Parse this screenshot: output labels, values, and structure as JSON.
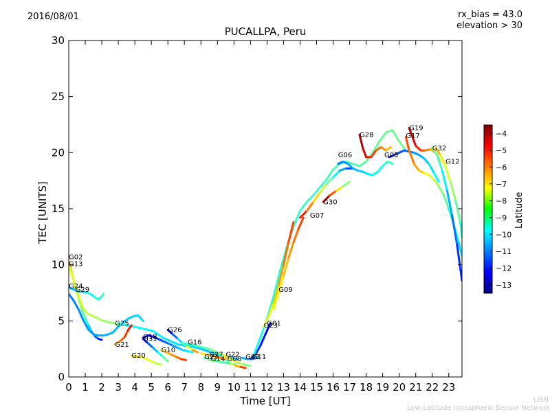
{
  "header": {
    "date": "2016/08/01",
    "title": "PUCALLPA, Peru",
    "rx_bias": "rx_bias = 43.0",
    "elevation": "elevation > 30"
  },
  "footer": {
    "line1": "LISN",
    "line2": "Low-Latitude Ionospheric Sensor Network"
  },
  "chart_data": {
    "type": "scatter",
    "title": "PUCALLPA, Peru",
    "xlabel": "Time [UT]",
    "ylabel": "TEC [UNITS]",
    "xlim": [
      0,
      23.8
    ],
    "ylim": [
      0,
      30
    ],
    "x_ticks": [
      0,
      1,
      2,
      3,
      4,
      5,
      6,
      7,
      8,
      9,
      10,
      11,
      12,
      13,
      14,
      15,
      16,
      17,
      18,
      19,
      20,
      21,
      22,
      23
    ],
    "y_ticks": [
      0,
      5,
      10,
      15,
      20,
      25,
      30
    ],
    "grid": false,
    "colorbar": {
      "label": "Latitude",
      "range": [
        -13.5,
        -3.5
      ],
      "ticks": [
        -4,
        -5,
        -6,
        -7,
        -8,
        -9,
        -10,
        -11,
        -12,
        -13
      ],
      "colormap": "jet"
    },
    "series": [
      {
        "name": "G02",
        "label_at": [
          0.0,
          10.5
        ],
        "lat_start": -6.5,
        "lat_end": -12.5,
        "x": [
          0.0,
          0.2,
          0.4,
          0.6,
          0.8,
          1.0,
          1.2,
          1.4,
          1.6,
          1.8,
          2.0
        ],
        "y": [
          10.3,
          9.2,
          8.0,
          7.0,
          6.0,
          5.2,
          4.6,
          4.0,
          3.6,
          3.4,
          3.3
        ]
      },
      {
        "name": "G13",
        "label_at": [
          0.0,
          9.9
        ],
        "lat_start": -7.5,
        "lat_end": -8.5,
        "x": [
          0.0,
          0.3,
          0.6,
          0.9,
          1.2,
          1.5,
          1.8,
          2.1,
          2.4,
          2.7,
          3.0
        ],
        "y": [
          10.0,
          8.6,
          7.2,
          6.0,
          5.6,
          5.4,
          5.2,
          5.0,
          4.9,
          4.8,
          4.7
        ]
      },
      {
        "name": "G24",
        "label_at": [
          0.0,
          7.9
        ],
        "lat_start": -10.5,
        "lat_end": -9.0,
        "x": [
          0.0,
          0.3,
          0.6,
          0.9,
          1.2,
          1.5,
          1.8,
          2.0,
          2.1
        ],
        "y": [
          8.0,
          7.8,
          7.6,
          7.6,
          7.5,
          7.2,
          6.9,
          7.2,
          7.4
        ]
      },
      {
        "name": "G29",
        "label_at": [
          0.4,
          7.6
        ],
        "lat_start": -11.0,
        "lat_end": -10.0,
        "x": [
          0.0,
          0.3,
          0.6,
          0.9,
          1.2,
          1.5,
          1.8,
          2.1,
          2.4,
          2.7,
          3.0,
          3.3,
          3.6,
          3.9,
          4.2,
          4.5
        ],
        "y": [
          7.4,
          6.8,
          6.0,
          5.0,
          4.2,
          3.8,
          3.7,
          3.7,
          3.8,
          4.0,
          4.5,
          4.9,
          5.2,
          5.4,
          5.5,
          5.0
        ]
      },
      {
        "name": "G25",
        "label_at": [
          2.8,
          4.6
        ],
        "lat_start": -9.5,
        "lat_end": -10.5,
        "x": [
          3.0,
          3.3,
          3.6,
          3.9,
          4.2,
          4.5,
          4.8,
          5.1,
          5.4,
          5.7,
          6.0,
          6.3,
          6.6,
          7.0,
          7.4,
          7.8,
          8.2,
          8.6,
          9.0,
          9.4,
          9.8,
          10.2
        ],
        "y": [
          4.8,
          4.7,
          4.6,
          4.5,
          4.4,
          4.3,
          4.2,
          4.1,
          3.8,
          3.5,
          3.3,
          3.1,
          2.9,
          2.8,
          2.7,
          2.6,
          2.4,
          2.2,
          2.0,
          1.9,
          1.7,
          1.6
        ]
      },
      {
        "name": "G21",
        "label_at": [
          2.8,
          2.7
        ],
        "lat_start": -6.5,
        "lat_end": -4.5,
        "x": [
          2.8,
          3.0,
          3.2,
          3.4,
          3.6,
          3.8
        ],
        "y": [
          2.9,
          3.1,
          3.3,
          3.6,
          4.2,
          4.6
        ]
      },
      {
        "name": "G18",
        "label_at": [
          4.5,
          3.4
        ],
        "lat_start": -12.5,
        "lat_end": -9.5,
        "x": [
          4.5,
          4.8,
          5.1,
          5.4,
          5.7,
          6.0,
          6.3,
          6.6,
          6.9,
          7.2,
          7.5
        ],
        "y": [
          3.5,
          3.7,
          3.6,
          3.4,
          3.2,
          3.0,
          2.8,
          2.6,
          2.4,
          2.3,
          2.2
        ]
      },
      {
        "name": "G31",
        "label_at": [
          4.5,
          3.2
        ],
        "lat_start": -12.0,
        "lat_end": -8.0,
        "x": [
          4.5,
          4.8,
          5.1,
          5.4,
          5.7,
          6.0
        ],
        "y": [
          3.4,
          3.0,
          2.6,
          2.2,
          1.8,
          1.4
        ]
      },
      {
        "name": "G20",
        "label_at": [
          3.8,
          1.7
        ],
        "lat_start": -7.0,
        "lat_end": -8.0,
        "x": [
          3.8,
          4.1,
          4.4,
          4.7,
          5.0,
          5.3,
          5.6
        ],
        "y": [
          1.9,
          1.8,
          1.8,
          1.6,
          1.4,
          1.2,
          1.1
        ]
      },
      {
        "name": "G26",
        "label_at": [
          6.0,
          4.0
        ],
        "lat_start": -12.5,
        "lat_end": -5.0,
        "x": [
          6.0,
          6.3,
          6.6,
          6.9,
          7.2,
          7.5,
          7.8
        ],
        "y": [
          4.2,
          3.8,
          3.4,
          3.0,
          2.7,
          2.4,
          2.2
        ]
      },
      {
        "name": "G10",
        "label_at": [
          5.6,
          2.2
        ],
        "lat_start": -7.0,
        "lat_end": -5.0,
        "x": [
          5.6,
          5.9,
          6.2,
          6.5,
          6.8,
          7.1
        ],
        "y": [
          2.4,
          2.2,
          2.0,
          1.8,
          1.6,
          1.5
        ]
      },
      {
        "name": "G16",
        "label_at": [
          7.2,
          2.9
        ],
        "lat_start": -9.5,
        "lat_end": -8.0,
        "x": [
          7.0,
          7.3,
          7.6,
          7.9,
          8.2,
          8.5,
          8.8,
          9.1,
          9.4,
          9.7,
          10.0
        ],
        "y": [
          3.0,
          2.9,
          2.8,
          2.7,
          2.6,
          2.5,
          2.3,
          2.1,
          1.9,
          1.7,
          1.5
        ]
      },
      {
        "name": "G27",
        "label_at": [
          8.5,
          1.8
        ],
        "lat_start": -7.0,
        "lat_end": -6.0,
        "x": [
          8.0,
          8.3,
          8.6,
          8.9,
          9.2,
          9.5
        ],
        "y": [
          2.1,
          2.0,
          1.9,
          1.8,
          1.7,
          1.6
        ]
      },
      {
        "name": "G23",
        "label_at": [
          8.2,
          1.6
        ],
        "lat_start": -9.0,
        "lat_end": -8.5,
        "x": [
          8.2,
          8.5,
          8.8,
          9.1
        ],
        "y": [
          1.7,
          1.6,
          1.5,
          1.4
        ]
      },
      {
        "name": "G14",
        "label_at": [
          8.6,
          1.4
        ],
        "lat_start": -8.5,
        "lat_end": -9.5,
        "x": [
          8.5,
          8.9,
          9.3,
          9.7,
          10.1
        ],
        "y": [
          1.5,
          1.4,
          1.3,
          1.2,
          1.1
        ]
      },
      {
        "name": "G22",
        "label_at": [
          9.5,
          1.8
        ],
        "lat_start": -7.0,
        "lat_end": -9.0,
        "x": [
          9.4,
          9.8,
          10.2,
          10.6,
          11.0
        ],
        "y": [
          1.9,
          1.6,
          1.3,
          1.1,
          1.0
        ]
      },
      {
        "name": "G08",
        "label_at": [
          9.6,
          1.4
        ],
        "lat_start": -9.0,
        "lat_end": -4.0,
        "x": [
          9.5,
          9.8,
          10.1,
          10.4,
          10.7
        ],
        "y": [
          1.5,
          1.2,
          1.0,
          0.9,
          0.8
        ]
      },
      {
        "name": "G03",
        "label_at": [
          10.7,
          1.6
        ],
        "lat_start": -10.5,
        "lat_end": -11.0,
        "x": [
          10.5,
          10.8,
          11.1,
          11.4
        ],
        "y": [
          1.7,
          1.6,
          1.6,
          1.7
        ]
      },
      {
        "name": "G11",
        "label_at": [
          11.1,
          1.6
        ],
        "lat_start": -11.5,
        "lat_end": -12.5,
        "x": [
          11.0,
          11.3,
          11.6,
          11.9,
          12.2
        ],
        "y": [
          1.6,
          2.0,
          2.8,
          3.8,
          4.8
        ]
      },
      {
        "name": "G23b",
        "label_at": [
          11.8,
          4.4
        ],
        "lat_start": -9.5,
        "lat_end": -8.5,
        "x": [
          11.2,
          11.6,
          12.0,
          12.4,
          12.8,
          13.2,
          13.6,
          14.0,
          14.4,
          14.8,
          15.2,
          15.6,
          16.0,
          16.4,
          16.8,
          17.2,
          17.6,
          18.0,
          18.4,
          18.8,
          19.2,
          19.6,
          20.0,
          20.4,
          20.8,
          21.2
        ],
        "y": [
          2.0,
          3.5,
          5.2,
          7.2,
          9.5,
          11.6,
          13.4,
          14.8,
          15.6,
          16.2,
          16.9,
          17.6,
          18.5,
          19.0,
          19.2,
          19.0,
          18.8,
          19.2,
          20.0,
          21.0,
          21.8,
          22.0,
          21.0,
          20.2,
          20.0,
          19.8
        ]
      },
      {
        "name": "G01",
        "label_at": [
          12.0,
          4.6
        ],
        "lat_start": -7.5,
        "lat_end": -5.0,
        "x": [
          11.8,
          12.1,
          12.4,
          12.7,
          13.0,
          13.3,
          13.6
        ],
        "y": [
          4.5,
          5.4,
          6.6,
          8.2,
          10.0,
          12.0,
          13.8
        ]
      },
      {
        "name": "G09",
        "label_at": [
          12.7,
          7.6
        ],
        "lat_start": -7.5,
        "lat_end": -5.0,
        "x": [
          12.4,
          12.7,
          13.0,
          13.3,
          13.6,
          13.9,
          14.2
        ],
        "y": [
          6.0,
          7.5,
          9.0,
          10.6,
          12.0,
          13.2,
          14.2
        ]
      },
      {
        "name": "G07",
        "label_at": [
          14.6,
          14.2
        ],
        "lat_start": -5.0,
        "lat_end": -12.5,
        "x": [
          14.0,
          14.4,
          14.8,
          15.2,
          15.6,
          16.0,
          16.4,
          16.8,
          17.2
        ],
        "y": [
          14.2,
          14.8,
          15.6,
          16.4,
          17.2,
          17.8,
          18.4,
          18.6,
          18.6
        ]
      },
      {
        "name": "G30",
        "label_at": [
          15.4,
          15.4
        ],
        "lat_start": -4.0,
        "lat_end": -10.0,
        "x": [
          15.4,
          15.8,
          16.2,
          16.6,
          17.0
        ],
        "y": [
          15.6,
          16.2,
          16.6,
          17.0,
          17.4
        ]
      },
      {
        "name": "G06",
        "label_at": [
          16.3,
          19.6
        ],
        "lat_start": -11.0,
        "lat_end": -9.0,
        "x": [
          16.3,
          16.6,
          16.9,
          17.2,
          17.5,
          17.8,
          18.1,
          18.4,
          18.7,
          19.0,
          19.3,
          19.6
        ],
        "y": [
          19.0,
          19.2,
          19.0,
          18.6,
          18.4,
          18.3,
          18.1,
          18.0,
          18.3,
          18.8,
          19.2,
          19.0
        ]
      },
      {
        "name": "G28",
        "label_at": [
          17.6,
          21.4
        ],
        "lat_start": -4.0,
        "lat_end": -7.0,
        "x": [
          17.6,
          17.8,
          18.0,
          18.3,
          18.6,
          18.9,
          19.2,
          19.5
        ],
        "y": [
          21.6,
          20.4,
          19.6,
          19.6,
          20.2,
          20.5,
          20.2,
          20.5
        ]
      },
      {
        "name": "G05",
        "label_at": [
          19.1,
          19.6
        ],
        "lat_start": -12.0,
        "lat_end": -9.5,
        "x": [
          19.4,
          19.7,
          20.0,
          20.3,
          20.6,
          20.9,
          21.2,
          21.5,
          21.8,
          22.1,
          22.4
        ],
        "y": [
          19.6,
          19.8,
          20.0,
          20.2,
          20.1,
          20.0,
          19.8,
          19.5,
          19.0,
          18.2,
          17.4
        ]
      },
      {
        "name": "G19",
        "label_at": [
          20.6,
          22.0
        ],
        "lat_start": -4.0,
        "lat_end": -7.5,
        "x": [
          20.6,
          20.8,
          21.0,
          21.3,
          21.6,
          21.9,
          22.2,
          22.5
        ],
        "y": [
          22.2,
          21.4,
          20.6,
          20.2,
          20.2,
          20.3,
          20.0,
          19.2
        ]
      },
      {
        "name": "G17",
        "label_at": [
          20.4,
          21.3
        ],
        "lat_start": -5.5,
        "lat_end": -10.5,
        "x": [
          20.4,
          20.6,
          20.9,
          21.2,
          21.5,
          21.8,
          22.1,
          22.4,
          22.7,
          23.0,
          23.3,
          23.6,
          23.8
        ],
        "y": [
          21.4,
          20.2,
          19.0,
          18.4,
          18.2,
          18.0,
          17.6,
          17.0,
          16.2,
          15.0,
          13.6,
          12.0,
          10.8
        ]
      },
      {
        "name": "G32",
        "label_at": [
          22.0,
          20.2
        ],
        "lat_start": -8.5,
        "lat_end": -12.5,
        "x": [
          22.0,
          22.3,
          22.6,
          22.9,
          23.2,
          23.5,
          23.8
        ],
        "y": [
          20.4,
          19.8,
          18.4,
          16.6,
          14.4,
          11.8,
          8.6
        ]
      },
      {
        "name": "G12",
        "label_at": [
          22.8,
          19.0
        ],
        "lat_start": -6.5,
        "lat_end": -10.0,
        "x": [
          22.2,
          22.5,
          22.8,
          23.1,
          23.4,
          23.7,
          23.8
        ],
        "y": [
          20.4,
          19.8,
          18.8,
          17.4,
          15.8,
          13.8,
          12.4
        ]
      }
    ]
  }
}
